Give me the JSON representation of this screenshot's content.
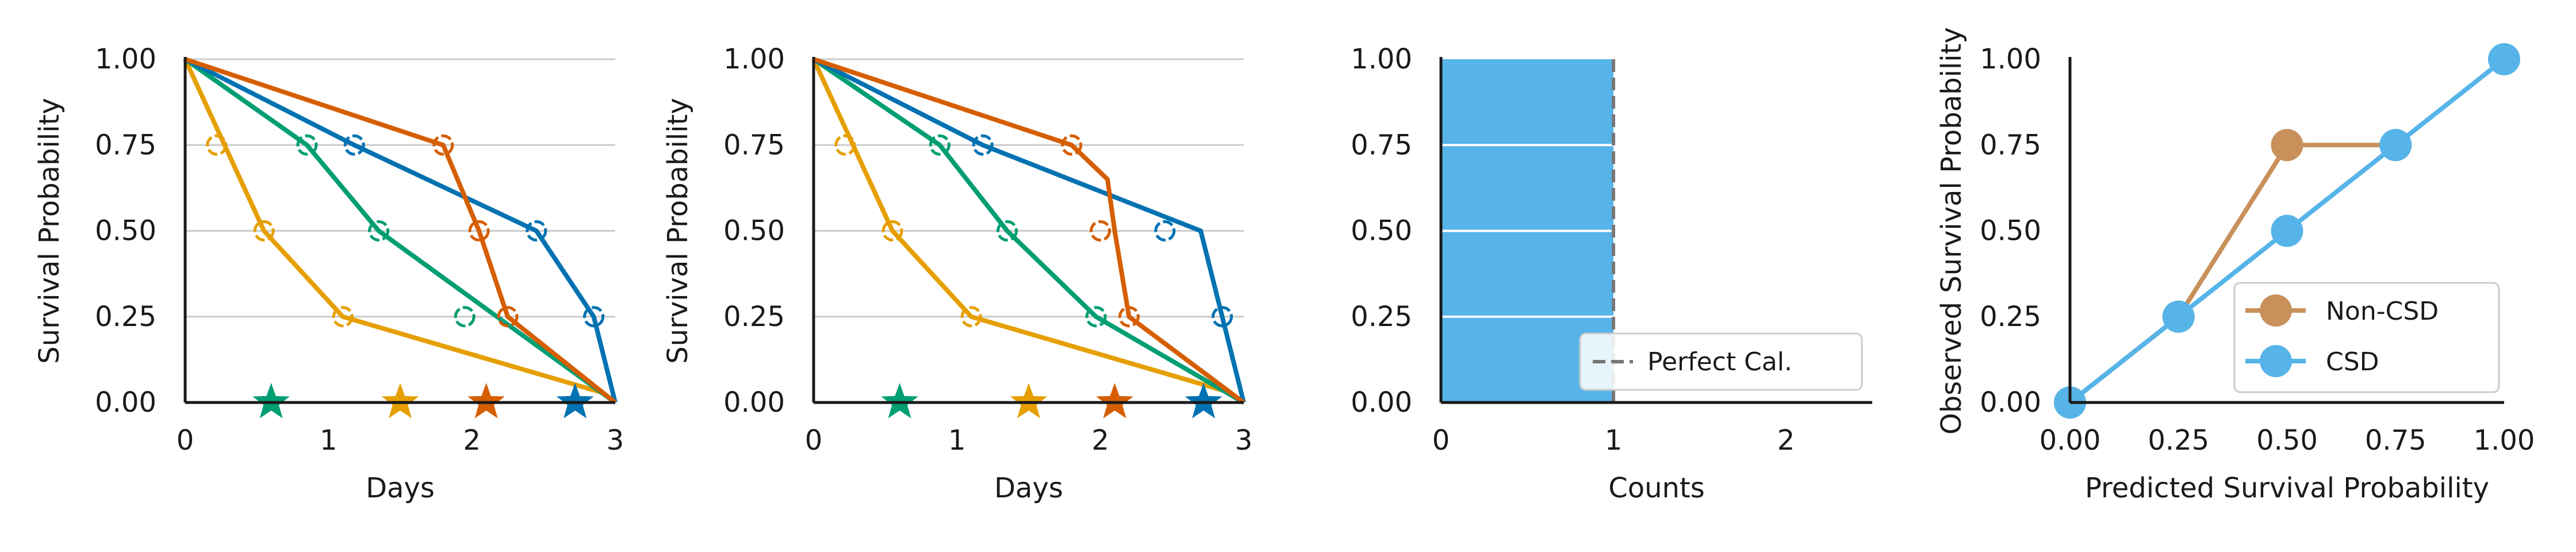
{
  "colors": {
    "orange": "#e69f00",
    "green": "#009e73",
    "blue": "#0072b2",
    "vermillion": "#d55e00",
    "sky": "#56b4e9",
    "tan": "#c8915c",
    "grid": "#cccccc",
    "axis": "#1a1a1a"
  },
  "chart_data": [
    {
      "type": "line",
      "xlabel": "Days",
      "ylabel": "Survival Probability",
      "xlim": [
        0,
        3
      ],
      "ylim": [
        0,
        1
      ],
      "xticks": [
        "0",
        "1",
        "2",
        "3"
      ],
      "yticks": [
        "0.00",
        "0.25",
        "0.50",
        "0.75",
        "1.00"
      ],
      "grid": "horizontal",
      "series": [
        {
          "color": "orange",
          "x": [
            0,
            0.55,
            1.1,
            2.9
          ],
          "y": [
            1,
            0.5,
            0.25,
            0.03
          ],
          "censor_x": [
            0.22,
            0.55,
            1.1
          ],
          "censor_y": [
            0.75,
            0.5,
            0.25
          ],
          "event_x": 1.5
        },
        {
          "color": "green",
          "x": [
            0,
            0.85,
            1.35,
            3.0
          ],
          "y": [
            1,
            0.75,
            0.5,
            0.0
          ],
          "censor_x": [
            0.85,
            1.35,
            1.95
          ],
          "censor_y": [
            0.75,
            0.5,
            0.25
          ],
          "event_x": 0.6
        },
        {
          "color": "blue",
          "x": [
            0,
            1.18,
            2.45,
            2.85,
            3.0
          ],
          "y": [
            1,
            0.75,
            0.5,
            0.25,
            0.0
          ],
          "censor_x": [
            1.18,
            2.45,
            2.85
          ],
          "censor_y": [
            0.75,
            0.5,
            0.25
          ],
          "event_x": 2.72
        },
        {
          "color": "vermillion",
          "x": [
            0,
            1.8,
            2.05,
            2.25,
            3.0
          ],
          "y": [
            1,
            0.75,
            0.5,
            0.25,
            0.0
          ],
          "censor_x": [
            1.8,
            2.05,
            2.25
          ],
          "censor_y": [
            0.75,
            0.5,
            0.25
          ],
          "event_x": 2.1
        }
      ]
    },
    {
      "type": "line",
      "xlabel": "Days",
      "ylabel": "Survival Probability",
      "xlim": [
        0,
        3
      ],
      "ylim": [
        0,
        1
      ],
      "xticks": [
        "0",
        "1",
        "2",
        "3"
      ],
      "yticks": [
        "0.00",
        "0.25",
        "0.50",
        "0.75",
        "1.00"
      ],
      "grid": "horizontal",
      "series": [
        {
          "color": "orange",
          "x": [
            0,
            0.55,
            1.1,
            2.9
          ],
          "y": [
            1,
            0.5,
            0.25,
            0.03
          ],
          "censor_x": [
            0.22,
            0.55,
            1.1
          ],
          "censor_y": [
            0.75,
            0.5,
            0.25
          ],
          "event_x": 1.5
        },
        {
          "color": "green",
          "x": [
            0,
            0.88,
            1.35,
            1.97,
            3.0
          ],
          "y": [
            1,
            0.75,
            0.5,
            0.25,
            0.0
          ],
          "censor_x": [
            0.88,
            1.35,
            1.97
          ],
          "censor_y": [
            0.75,
            0.5,
            0.25
          ],
          "event_x": 0.6
        },
        {
          "color": "blue",
          "x": [
            0,
            1.18,
            2.7,
            2.85,
            3.0
          ],
          "y": [
            1,
            0.75,
            0.5,
            0.25,
            0.0
          ],
          "censor_x": [
            1.18,
            2.45,
            2.85
          ],
          "censor_y": [
            0.75,
            0.5,
            0.25
          ],
          "event_x": 2.72
        },
        {
          "color": "vermillion",
          "x": [
            0,
            1.8,
            2.05,
            2.1,
            2.2,
            3.0
          ],
          "y": [
            1,
            0.75,
            0.65,
            0.5,
            0.25,
            0.0
          ],
          "censor_x": [
            1.8,
            2.0,
            2.2
          ],
          "censor_y": [
            0.75,
            0.5,
            0.25
          ],
          "event_x": 2.1
        }
      ]
    },
    {
      "type": "bar",
      "xlabel": "Counts",
      "ylabel": "",
      "xlim": [
        0,
        2.5
      ],
      "ylim": [
        0,
        1
      ],
      "xticks": [
        "0",
        "1",
        "2"
      ],
      "yticks": [
        "0.00",
        "0.25",
        "0.50",
        "0.75",
        "1.00"
      ],
      "bar": {
        "x0": 0,
        "x1": 1,
        "y0": 0,
        "y1": 1,
        "color": "sky"
      },
      "legend": {
        "position": "bottom-right",
        "entries": [
          {
            "label": "Perfect Cal.",
            "style": "dashed",
            "color": "#777777"
          }
        ]
      }
    },
    {
      "type": "line",
      "xlabel": "Predicted Survival Probability",
      "ylabel": "Observed Survival Probability",
      "xlim": [
        0,
        1
      ],
      "ylim": [
        0,
        1
      ],
      "xticks": [
        "0.00",
        "0.25",
        "0.50",
        "0.75",
        "1.00"
      ],
      "yticks": [
        "0.00",
        "0.25",
        "0.50",
        "0.75",
        "1.00"
      ],
      "series": [
        {
          "name": "Non-CSD",
          "color": "tan",
          "x": [
            0,
            0.25,
            0.5,
            0.75
          ],
          "y": [
            0,
            0.25,
            0.75,
            0.75
          ]
        },
        {
          "name": "CSD",
          "color": "sky",
          "x": [
            0,
            0.25,
            0.5,
            0.75,
            1.0
          ],
          "y": [
            0,
            0.25,
            0.5,
            0.75,
            1.0
          ]
        }
      ],
      "legend": {
        "position": "lower-right",
        "entries": [
          {
            "label": "Non-CSD",
            "color": "tan"
          },
          {
            "label": "CSD",
            "color": "sky"
          }
        ]
      }
    }
  ]
}
